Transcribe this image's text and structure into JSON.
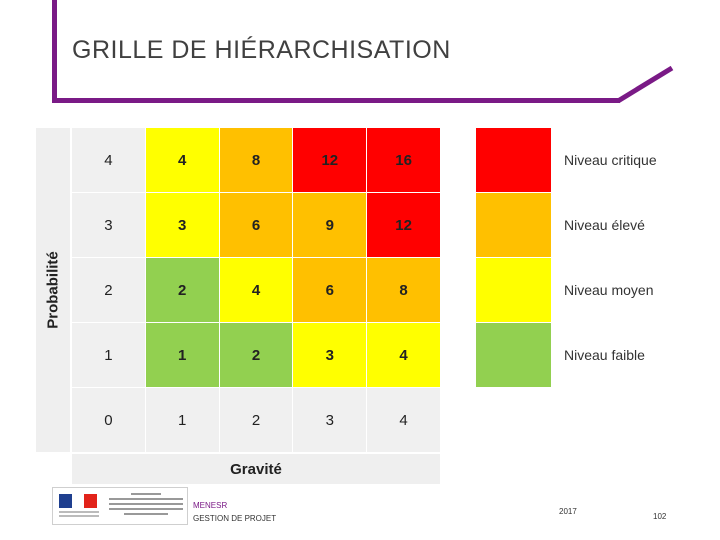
{
  "title": "GRILLE DE HIÉRARCHISATION",
  "matrix": {
    "y_axis_label": "Probabilité",
    "x_axis_label": "Gravité",
    "rows": [
      [
        {
          "v": "4",
          "c": "#f0f0f0",
          "b": false
        },
        {
          "v": "4",
          "c": "#ffff00",
          "b": true
        },
        {
          "v": "8",
          "c": "#ffc000",
          "b": true
        },
        {
          "v": "12",
          "c": "#ff0000",
          "b": true
        },
        {
          "v": "16",
          "c": "#ff0000",
          "b": true
        }
      ],
      [
        {
          "v": "3",
          "c": "#f0f0f0",
          "b": false
        },
        {
          "v": "3",
          "c": "#ffff00",
          "b": true
        },
        {
          "v": "6",
          "c": "#ffc000",
          "b": true
        },
        {
          "v": "9",
          "c": "#ffc000",
          "b": true
        },
        {
          "v": "12",
          "c": "#ff0000",
          "b": true
        }
      ],
      [
        {
          "v": "2",
          "c": "#f0f0f0",
          "b": false
        },
        {
          "v": "2",
          "c": "#92d050",
          "b": true
        },
        {
          "v": "4",
          "c": "#ffff00",
          "b": true
        },
        {
          "v": "6",
          "c": "#ffc000",
          "b": true
        },
        {
          "v": "8",
          "c": "#ffc000",
          "b": true
        }
      ],
      [
        {
          "v": "1",
          "c": "#f0f0f0",
          "b": false
        },
        {
          "v": "1",
          "c": "#92d050",
          "b": true
        },
        {
          "v": "2",
          "c": "#92d050",
          "b": true
        },
        {
          "v": "3",
          "c": "#ffff00",
          "b": true
        },
        {
          "v": "4",
          "c": "#ffff00",
          "b": true
        }
      ],
      [
        {
          "v": "0",
          "c": "#f0f0f0",
          "b": false
        },
        {
          "v": "1",
          "c": "#f0f0f0",
          "b": false
        },
        {
          "v": "2",
          "c": "#f0f0f0",
          "b": false
        },
        {
          "v": "3",
          "c": "#f0f0f0",
          "b": false
        },
        {
          "v": "4",
          "c": "#f0f0f0",
          "b": false
        }
      ]
    ]
  },
  "legend": [
    {
      "label": "Niveau critique",
      "color": "#ff0000"
    },
    {
      "label": "Niveau élevé",
      "color": "#ffc000"
    },
    {
      "label": "Niveau moyen",
      "color": "#ffff00"
    },
    {
      "label": "Niveau faible",
      "color": "#92d050"
    }
  ],
  "footer": {
    "org": "MENESR",
    "subtitle": "GESTION DE PROJET",
    "year": "2017",
    "page": "102"
  },
  "colors": {
    "frame": "#7a1a86",
    "flag_blue": "#1f3f8f",
    "flag_white": "#ffffff",
    "flag_red": "#e2231a"
  }
}
